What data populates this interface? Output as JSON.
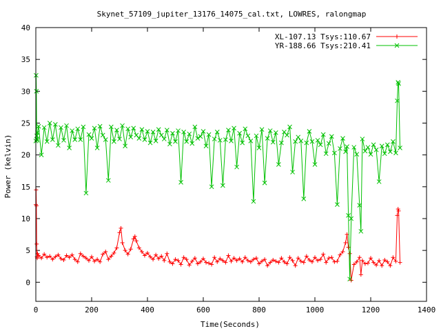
{
  "chart_data": {
    "type": "line",
    "title": "Skynet_57109_jupiter_13176_14075_cal.txt, LOWRES, ralongmap",
    "xlabel": "Time(Seconds)",
    "ylabel": "Power (kelvin)",
    "xlim": [
      0,
      1400
    ],
    "ylim": [
      -3,
      40
    ],
    "xticks": [
      "0",
      "200",
      "400",
      "600",
      "800",
      "1000",
      "1200",
      "1400"
    ],
    "yticks": [
      "0",
      "5",
      "10",
      "15",
      "20",
      "25",
      "30",
      "35",
      "40"
    ],
    "legend_position": "top-right",
    "grid": false,
    "series": [
      {
        "name": "XL-107.13 Tsys:110.67",
        "color": "#ff0000",
        "marker": "plus",
        "x": [
          0,
          1,
          2,
          3,
          4,
          5,
          6,
          10,
          20,
          30,
          40,
          50,
          60,
          70,
          80,
          90,
          100,
          110,
          120,
          130,
          140,
          150,
          160,
          170,
          180,
          190,
          200,
          210,
          220,
          230,
          240,
          250,
          260,
          270,
          280,
          290,
          300,
          305,
          310,
          320,
          330,
          340,
          350,
          355,
          360,
          370,
          380,
          390,
          400,
          410,
          420,
          430,
          440,
          450,
          460,
          470,
          480,
          490,
          500,
          510,
          520,
          530,
          540,
          550,
          560,
          570,
          580,
          590,
          600,
          610,
          620,
          630,
          640,
          650,
          660,
          670,
          680,
          690,
          700,
          710,
          720,
          730,
          740,
          750,
          760,
          770,
          780,
          790,
          800,
          810,
          820,
          830,
          840,
          850,
          860,
          870,
          880,
          890,
          900,
          910,
          920,
          930,
          940,
          950,
          960,
          970,
          980,
          990,
          1000,
          1010,
          1020,
          1030,
          1040,
          1050,
          1060,
          1070,
          1080,
          1090,
          1100,
          1110,
          1115,
          1120,
          1125,
          1130,
          1140,
          1150,
          1160,
          1165,
          1170,
          1180,
          1190,
          1200,
          1210,
          1220,
          1230,
          1240,
          1250,
          1260,
          1270,
          1280,
          1290,
          1295,
          1298,
          1300,
          1305
        ],
        "y": [
          12.2,
          14.5,
          12,
          6,
          4,
          3.8,
          4.5,
          4.2,
          3.8,
          4.4,
          3.9,
          4.1,
          3.6,
          4,
          4.3,
          3.7,
          3.5,
          4.2,
          3.9,
          4.3,
          3.6,
          3.2,
          4.5,
          4.1,
          3.8,
          3.4,
          4,
          3.3,
          3.6,
          3.2,
          4.4,
          4.8,
          3.6,
          4.1,
          4.6,
          5.4,
          7.8,
          8.5,
          6.2,
          5,
          4.4,
          5.2,
          6.8,
          7.2,
          6.5,
          5.4,
          4.8,
          4.2,
          4.6,
          4,
          3.6,
          4.3,
          3.7,
          4.1,
          3.4,
          4.5,
          3.2,
          2.9,
          3.6,
          3.4,
          2.8,
          3.9,
          3.6,
          2.7,
          3.3,
          3.8,
          2.9,
          3.2,
          3.7,
          3.1,
          3,
          2.8,
          3.9,
          3.2,
          3.7,
          3.4,
          3.1,
          4.2,
          3.3,
          3.8,
          3.4,
          3.7,
          3.2,
          3.9,
          3.4,
          3.2,
          3.6,
          3.8,
          2.9,
          3.3,
          3.6,
          2.6,
          3.1,
          3.5,
          3.3,
          3.1,
          3.8,
          3.2,
          2.9,
          3.9,
          3.4,
          2.6,
          3.8,
          3.3,
          3.1,
          4.1,
          3.5,
          3.2,
          3.9,
          3.4,
          3.6,
          4.4,
          3.1,
          3.8,
          3.9,
          3.2,
          3.3,
          4.3,
          4.8,
          6.2,
          7.5,
          5.5,
          4.5,
          0.3,
          2.8,
          3.2,
          3.9,
          1.2,
          3.4,
          2.9,
          3,
          3.8,
          3.1,
          2.7,
          3.4,
          2.6,
          3.5,
          3.2,
          2.6,
          3.9,
          3.3,
          10.5,
          11.5,
          11.2,
          3.1
        ]
      },
      {
        "name": "YR-188.66 Tsys:210.41",
        "color": "#00c000",
        "marker": "x",
        "x": [
          0,
          1,
          2,
          3,
          4,
          5,
          6,
          10,
          20,
          30,
          40,
          50,
          60,
          70,
          80,
          90,
          100,
          110,
          120,
          130,
          140,
          150,
          160,
          170,
          180,
          190,
          200,
          210,
          220,
          230,
          240,
          250,
          260,
          270,
          280,
          290,
          300,
          310,
          320,
          330,
          340,
          350,
          360,
          370,
          380,
          390,
          400,
          410,
          420,
          430,
          440,
          450,
          460,
          470,
          480,
          490,
          500,
          510,
          520,
          530,
          540,
          550,
          560,
          570,
          580,
          590,
          600,
          610,
          620,
          630,
          640,
          650,
          660,
          670,
          680,
          690,
          700,
          710,
          720,
          730,
          740,
          750,
          760,
          770,
          780,
          790,
          800,
          810,
          820,
          830,
          840,
          850,
          860,
          870,
          880,
          890,
          900,
          910,
          920,
          930,
          940,
          950,
          960,
          970,
          980,
          990,
          1000,
          1010,
          1020,
          1030,
          1040,
          1050,
          1060,
          1070,
          1080,
          1090,
          1100,
          1110,
          1115,
          1120,
          1125,
          1130,
          1140,
          1150,
          1160,
          1165,
          1170,
          1180,
          1190,
          1200,
          1210,
          1220,
          1230,
          1240,
          1250,
          1260,
          1270,
          1280,
          1290,
          1295,
          1298,
          1300,
          1305
        ],
        "y": [
          22.2,
          32.5,
          30,
          23,
          22.5,
          22.3,
          23.5,
          24.5,
          20,
          24.3,
          22.1,
          25,
          22.4,
          24.8,
          21.5,
          24.3,
          22.3,
          24.6,
          21.1,
          23.8,
          22.4,
          24.1,
          22.4,
          24.4,
          14,
          23.2,
          22.6,
          24.2,
          21.1,
          24.5,
          23.1,
          22.4,
          16,
          24.4,
          22.1,
          23.9,
          22.5,
          24.6,
          21.4,
          24.1,
          22.8,
          24.2,
          23.1,
          22.6,
          24,
          22.4,
          23.7,
          21.9,
          23.6,
          22.2,
          24,
          23.1,
          22.5,
          23.9,
          21.7,
          23.4,
          22.1,
          23.8,
          15.7,
          23.6,
          22.1,
          23.3,
          21.8,
          24.4,
          22.6,
          22.9,
          23.7,
          21.4,
          23.2,
          15,
          22.5,
          23.6,
          22.3,
          15.2,
          22.4,
          23.9,
          22.2,
          24.2,
          18.1,
          23.4,
          21.9,
          24.1,
          23,
          22.2,
          12.7,
          23,
          21.1,
          24,
          15.6,
          22.6,
          23.8,
          22,
          23.5,
          18.5,
          21.9,
          23.6,
          23.1,
          24.4,
          17.3,
          22.1,
          22.8,
          22.2,
          13.1,
          21.9,
          23.7,
          22.1,
          18.5,
          22.3,
          21.6,
          23.2,
          20.2,
          21.8,
          22.9,
          20.3,
          12.2,
          21,
          22.6,
          20.5,
          21.3,
          10.5,
          0.5,
          10,
          21.2,
          20.1,
          12.1,
          8,
          22.5,
          20.6,
          21.2,
          20.1,
          21.6,
          20.8,
          15.8,
          21.4,
          20.2,
          21.6,
          20.5,
          22.1,
          20.3,
          28.5,
          31.4,
          31.2,
          21.1
        ]
      }
    ]
  }
}
